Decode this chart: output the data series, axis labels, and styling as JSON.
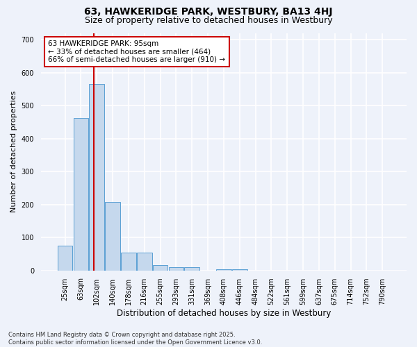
{
  "title": "63, HAWKERIDGE PARK, WESTBURY, BA13 4HJ",
  "subtitle": "Size of property relative to detached houses in Westbury",
  "xlabel": "Distribution of detached houses by size in Westbury",
  "ylabel": "Number of detached properties",
  "footer_line1": "Contains HM Land Registry data © Crown copyright and database right 2025.",
  "footer_line2": "Contains public sector information licensed under the Open Government Licence v3.0.",
  "categories": [
    "25sqm",
    "63sqm",
    "102sqm",
    "140sqm",
    "178sqm",
    "216sqm",
    "255sqm",
    "293sqm",
    "331sqm",
    "369sqm",
    "408sqm",
    "446sqm",
    "484sqm",
    "522sqm",
    "561sqm",
    "599sqm",
    "637sqm",
    "675sqm",
    "714sqm",
    "752sqm",
    "790sqm"
  ],
  "values": [
    75,
    462,
    565,
    207,
    55,
    55,
    17,
    10,
    10,
    0,
    4,
    4,
    0,
    0,
    0,
    0,
    0,
    0,
    0,
    0,
    0
  ],
  "bar_color": "#c5d8ed",
  "bar_edge_color": "#5a9fd4",
  "property_line_color": "#cc0000",
  "annotation_text": "63 HAWKERIDGE PARK: 95sqm\n← 33% of detached houses are smaller (464)\n66% of semi-detached houses are larger (910) →",
  "annotation_box_color": "#cc0000",
  "ylim": [
    0,
    720
  ],
  "yticks": [
    0,
    100,
    200,
    300,
    400,
    500,
    600,
    700
  ],
  "background_color": "#eef2fa",
  "grid_color": "#ffffff",
  "title_fontsize": 10,
  "subtitle_fontsize": 9,
  "ylabel_fontsize": 8,
  "xlabel_fontsize": 8.5,
  "tick_fontsize": 7,
  "ann_fontsize": 7.5,
  "footer_fontsize": 6
}
